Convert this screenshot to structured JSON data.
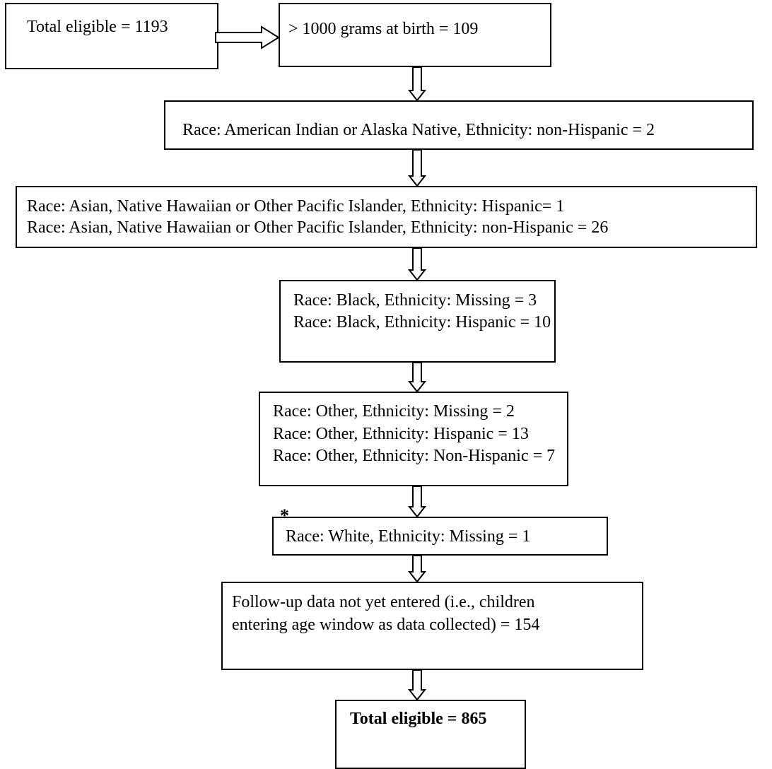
{
  "boxes": [
    {
      "lines": [
        "Total eligible = 1193"
      ]
    },
    {
      "lines": [
        "> 1000 grams at birth = 109"
      ]
    },
    {
      "lines": [
        "Race: American Indian or Alaska Native, Ethnicity: non-Hispanic = 2"
      ]
    },
    {
      "lines": [
        "Race: Asian, Native Hawaiian or Other Pacific Islander, Ethnicity: Hispanic= 1",
        "Race: Asian, Native Hawaiian or Other Pacific Islander, Ethnicity: non-Hispanic = 26"
      ]
    },
    {
      "lines": [
        "Race: Black, Ethnicity: Missing = 3",
        "Race: Black, Ethnicity: Hispanic = 10"
      ]
    },
    {
      "lines": [
        "Race: Other, Ethnicity: Missing = 2",
        "Race: Other, Ethnicity: Hispanic = 13",
        "Race: Other, Ethnicity: Non-Hispanic = 7"
      ]
    },
    {
      "lines": [
        "Race: White, Ethnicity: Missing = 1"
      ]
    },
    {
      "lines": [
        "Follow-up data not yet entered (i.e., children",
        "entering age window as data collected) = 154"
      ]
    },
    {
      "lines": [
        "Total eligible = 865"
      ]
    }
  ],
  "footnote_marker": "*"
}
